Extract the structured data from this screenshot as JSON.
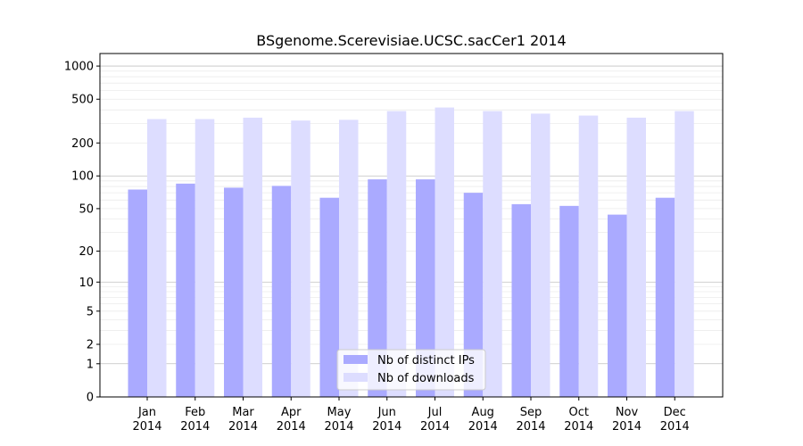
{
  "chart_data": {
    "type": "bar",
    "title": "BSgenome.Scerevisiae.UCSC.sacCer1 2014",
    "xlabel": "",
    "ylabel": "",
    "y_scale": "log1p",
    "ylim": [
      0,
      1300
    ],
    "y_ticks": [
      "0",
      "1",
      "2",
      "5",
      "10",
      "20",
      "50",
      "100",
      "200",
      "500",
      "1000"
    ],
    "categories": [
      "Jan\n2014",
      "Feb\n2014",
      "Mar\n2014",
      "Apr\n2014",
      "May\n2014",
      "Jun\n2014",
      "Jul\n2014",
      "Aug\n2014",
      "Sep\n2014",
      "Oct\n2014",
      "Nov\n2014",
      "Dec\n2014"
    ],
    "series": [
      {
        "name": "Nb of distinct IPs",
        "color": "#aaaaff",
        "values": [
          75,
          85,
          78,
          81,
          63,
          93,
          93,
          70,
          55,
          53,
          44,
          63
        ]
      },
      {
        "name": "Nb of downloads",
        "color": "#ddddff",
        "values": [
          330,
          330,
          340,
          320,
          325,
          390,
          420,
          390,
          370,
          355,
          340,
          390
        ]
      }
    ],
    "legend_position": "lower center",
    "grid": true
  }
}
